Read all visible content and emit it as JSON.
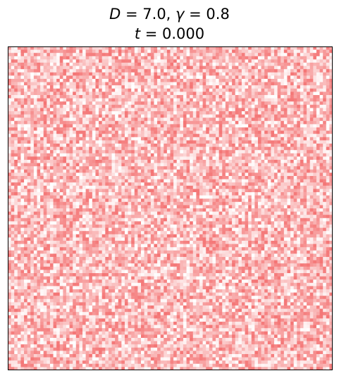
{
  "chart_data": {
    "type": "heatmap",
    "title_line1": {
      "D_symbol": "D",
      "D_text": " = 7.0, ",
      "gamma_symbol": "γ",
      "gamma_text": " = 0.8"
    },
    "title_line2": {
      "t_symbol": "t",
      "t_text": " = 0.000"
    },
    "xlabel": "",
    "ylabel": "",
    "axis_ticks": "none",
    "grid": false,
    "legend": "none",
    "colormap": "diverging blue-white-red (bwr), centered at 0",
    "colors": {
      "negative": "#3a4cc0",
      "zero": "#ffffff",
      "positive": "#ee2a2a",
      "frame": "#000000"
    },
    "grid_size": {
      "rows": 100,
      "cols": 100
    },
    "field_description": "uniform random initial field: values mostly positive, scattered near zero, few slightly negative",
    "value_range": [
      -0.15,
      0.75
    ],
    "dominant_sign": "positive",
    "mean_value": 0.35
  }
}
